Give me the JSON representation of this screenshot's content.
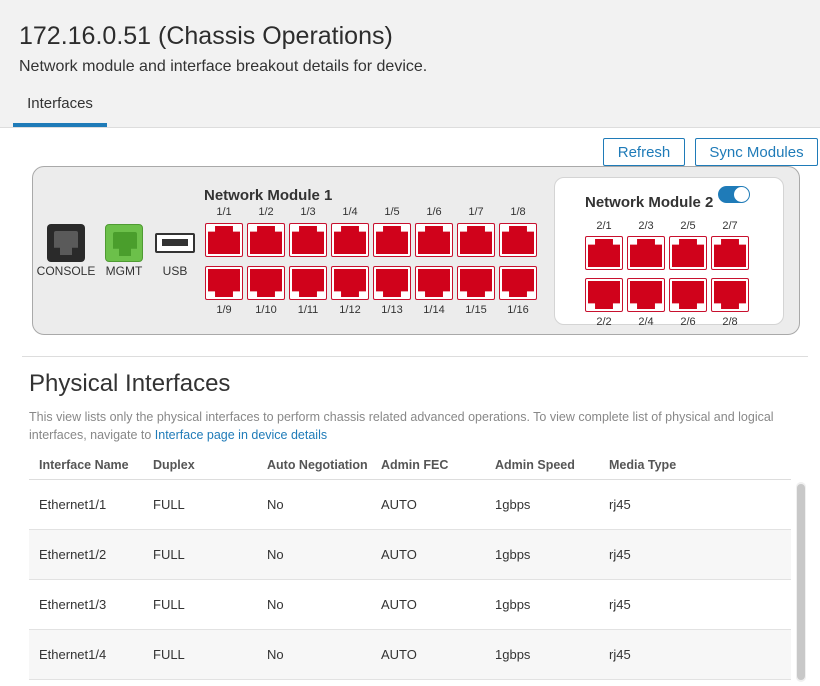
{
  "header": {
    "title": "172.16.0.51 (Chassis Operations)",
    "subtitle": "Network module and interface breakout details for device.",
    "tab": "Interfaces"
  },
  "toolbar": {
    "refresh_label": "Refresh",
    "sync_label": "Sync Modules"
  },
  "chassis": {
    "console_label": "CONSOLE",
    "mgmt_label": "MGMT",
    "usb_label": "USB",
    "module1": {
      "title": "Network Module 1",
      "top_ports": [
        "1/1",
        "1/2",
        "1/3",
        "1/4",
        "1/5",
        "1/6",
        "1/7",
        "1/8"
      ],
      "bottom_ports": [
        "1/9",
        "1/10",
        "1/11",
        "1/12",
        "1/13",
        "1/14",
        "1/15",
        "1/16"
      ]
    },
    "module2": {
      "title": "Network Module 2",
      "enabled": true,
      "top_ports": [
        "2/1",
        "2/3",
        "2/5",
        "2/7"
      ],
      "bottom_ports": [
        "2/2",
        "2/4",
        "2/6",
        "2/8"
      ]
    }
  },
  "physical": {
    "title": "Physical Interfaces",
    "desc_prefix": "This view lists only the physical interfaces to perform chassis related advanced operations. To view complete list of physical and logical interfaces, navigate to ",
    "desc_link": "Interface page in device details",
    "columns": [
      "Interface Name",
      "Duplex",
      "Auto Negotiation",
      "Admin FEC",
      "Admin Speed",
      "Media Type"
    ],
    "rows": [
      [
        "Ethernet1/1",
        "FULL",
        "No",
        "AUTO",
        "1gbps",
        "rj45"
      ],
      [
        "Ethernet1/2",
        "FULL",
        "No",
        "AUTO",
        "1gbps",
        "rj45"
      ],
      [
        "Ethernet1/3",
        "FULL",
        "No",
        "AUTO",
        "1gbps",
        "rj45"
      ],
      [
        "Ethernet1/4",
        "FULL",
        "No",
        "AUTO",
        "1gbps",
        "rj45"
      ]
    ]
  },
  "colors": {
    "accent": "#1f7bb8",
    "port_red": "#d0021b",
    "mgmt_green": "#6cc04a"
  }
}
